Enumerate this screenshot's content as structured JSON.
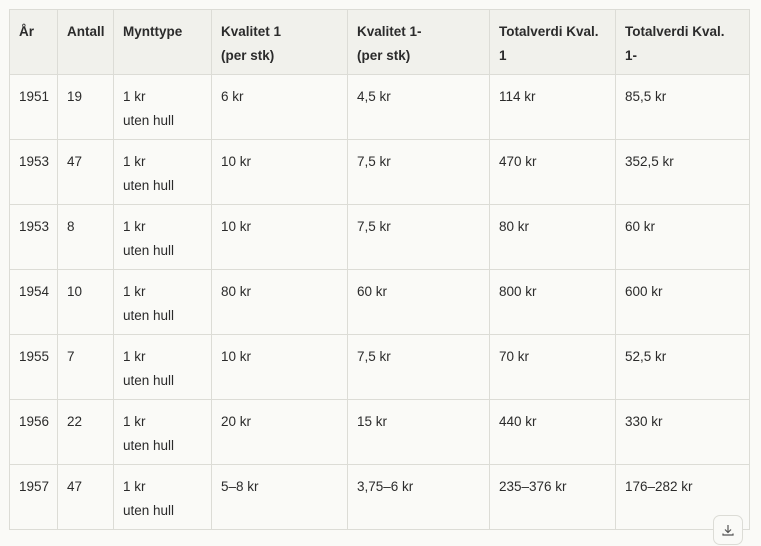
{
  "table": {
    "headers": [
      [
        "År"
      ],
      [
        "Antall"
      ],
      [
        "Mynttype"
      ],
      [
        "Kvalitet 1",
        "(per stk)"
      ],
      [
        "Kvalitet 1-",
        "(per stk)"
      ],
      [
        "Totalverdi Kval.",
        "1"
      ],
      [
        "Totalverdi Kval.",
        "1-"
      ]
    ],
    "rows": [
      [
        "1951",
        "19",
        [
          "1 kr",
          "uten hull"
        ],
        "6 kr",
        "4,5 kr",
        "114 kr",
        "85,5 kr"
      ],
      [
        "1953",
        "47",
        [
          "1 kr",
          "uten hull"
        ],
        "10 kr",
        "7,5 kr",
        "470 kr",
        "352,5 kr"
      ],
      [
        "1953",
        "8",
        [
          "1 kr",
          "uten hull"
        ],
        "10 kr",
        "7,5 kr",
        "80 kr",
        "60 kr"
      ],
      [
        "1954",
        "10",
        [
          "1 kr",
          "uten hull"
        ],
        "80 kr",
        "60 kr",
        "800 kr",
        "600 kr"
      ],
      [
        "1955",
        "7",
        [
          "1 kr",
          "uten hull"
        ],
        "10 kr",
        "7,5 kr",
        "70 kr",
        "52,5 kr"
      ],
      [
        "1956",
        "22",
        [
          "1 kr",
          "uten hull"
        ],
        "20 kr",
        "15 kr",
        "440 kr",
        "330 kr"
      ],
      [
        "1957",
        "47",
        [
          "1 kr",
          "uten hull"
        ],
        "5–8 kr",
        "3,75–6 kr",
        "235–376 kr",
        "176–282 kr"
      ]
    ]
  },
  "download_button": {
    "icon": "download-icon"
  }
}
